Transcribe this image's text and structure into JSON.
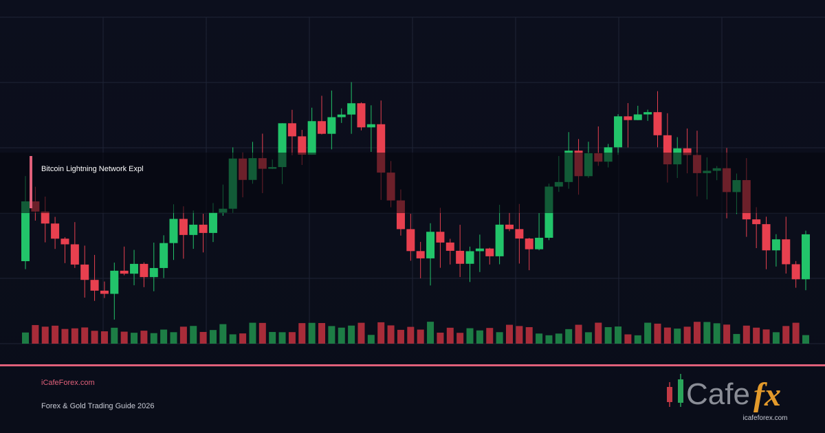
{
  "title": "Bitcoin Lightning Network Expl",
  "footer": {
    "site": "iCafeForex.com",
    "tagline": "Forex & Gold Trading Guide 2026"
  },
  "logo": {
    "brand": "Cafe",
    "accent": "fx",
    "url": "icafeforex.com"
  }
}
